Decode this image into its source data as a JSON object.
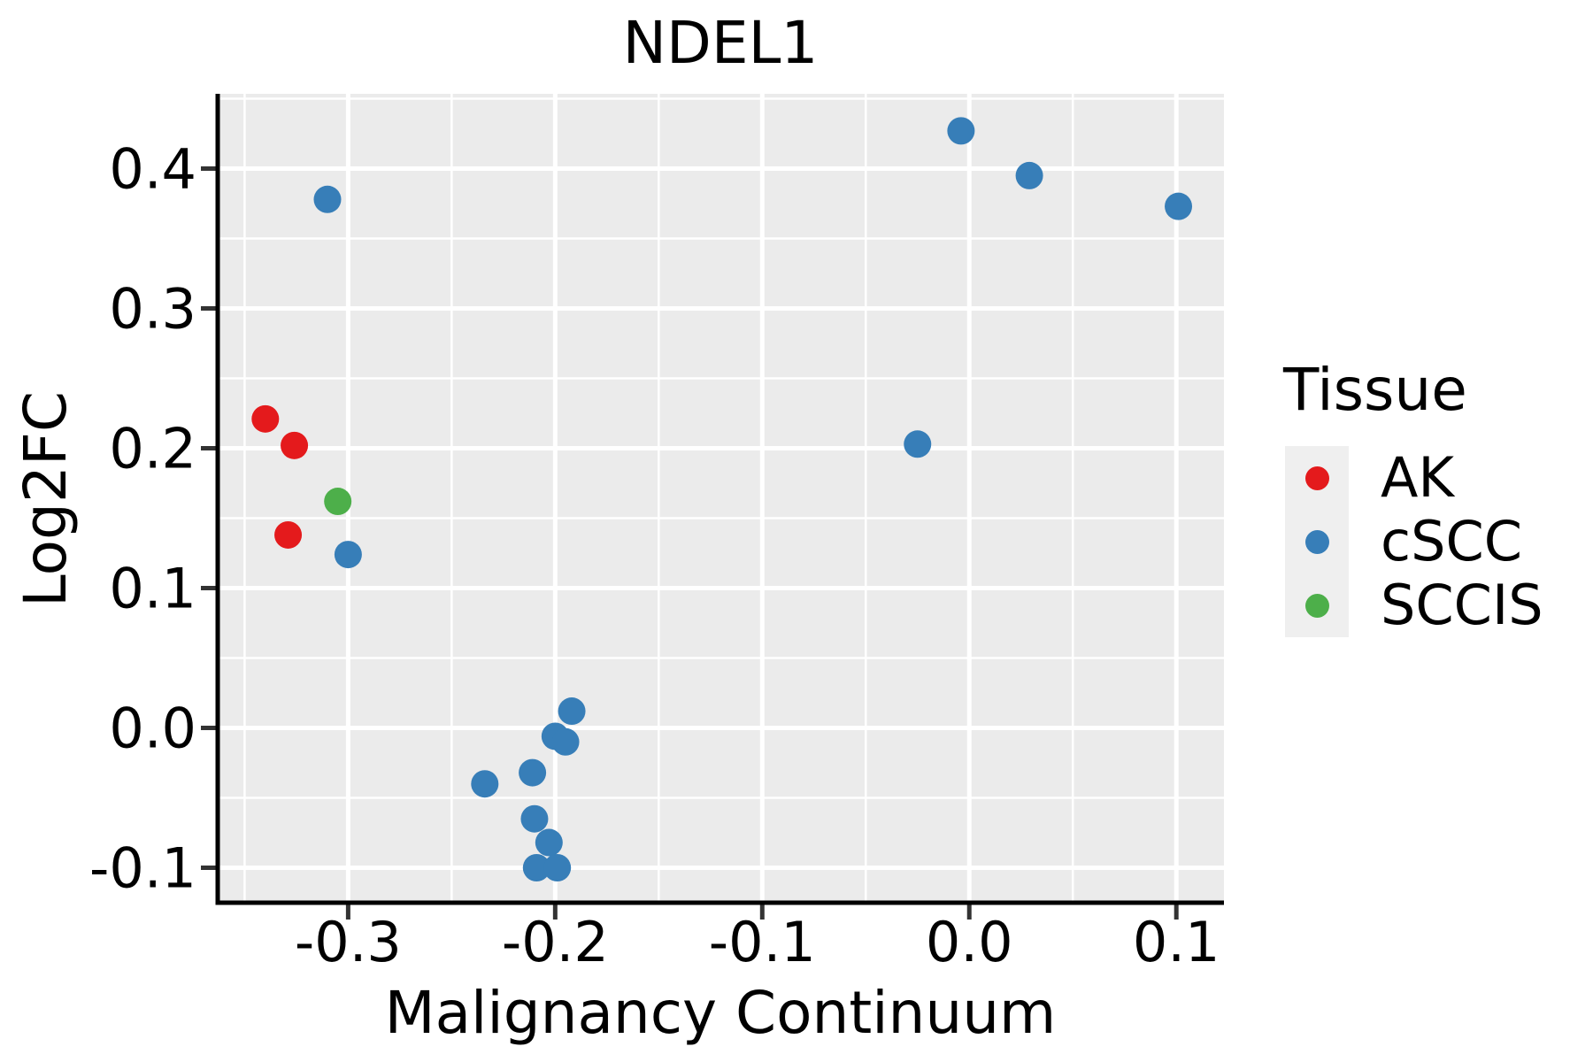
{
  "figure": {
    "background": "#FFFFFF"
  },
  "chart_data": {
    "type": "scatter",
    "title": "NDEL1",
    "xlabel": "Malignancy Continuum",
    "ylabel": "Log2FC",
    "xlim": [
      -0.363,
      0.123
    ],
    "ylim": [
      -0.125,
      0.4535
    ],
    "x_ticks": {
      "values": [
        -0.3,
        -0.2,
        -0.1,
        0.0,
        0.1
      ],
      "labels": [
        "-0.3",
        "-0.2",
        "-0.1",
        "0.0",
        "0.1"
      ]
    },
    "y_ticks": {
      "values": [
        -0.1,
        0.0,
        0.1,
        0.2,
        0.3,
        0.4
      ],
      "labels": [
        "-0.1",
        "0.0",
        "0.1",
        "0.2",
        "0.3",
        "0.4"
      ]
    },
    "grid": {
      "major": true,
      "minor": true,
      "grid_color": "#FFFFFF",
      "panel_background": "#EBEBEB"
    },
    "axis": {
      "spine_color": "#000000",
      "tick_color": "#333333",
      "text_color": "#000000"
    },
    "legend": {
      "title": "Tissue",
      "position": "right",
      "key_background": "#EFEFEF"
    },
    "point_radius_px": 15.5,
    "series": [
      {
        "name": "AK",
        "color": "#E41A1C",
        "points": [
          [
            -0.34,
            0.221
          ],
          [
            -0.326,
            0.202
          ],
          [
            -0.329,
            0.138
          ]
        ]
      },
      {
        "name": "cSCC",
        "color": "#377EB8",
        "points": [
          [
            -0.31,
            0.378
          ],
          [
            -0.004,
            0.427
          ],
          [
            0.029,
            0.395
          ],
          [
            0.101,
            0.373
          ],
          [
            -0.025,
            0.203
          ],
          [
            -0.3,
            0.124
          ],
          [
            -0.192,
            0.012
          ],
          [
            -0.2,
            -0.006
          ],
          [
            -0.195,
            -0.01
          ],
          [
            -0.211,
            -0.032
          ],
          [
            -0.234,
            -0.04
          ],
          [
            -0.21,
            -0.065
          ],
          [
            -0.203,
            -0.082
          ],
          [
            -0.209,
            -0.1
          ],
          [
            -0.199,
            -0.1
          ]
        ]
      },
      {
        "name": "SCCIS",
        "color": "#4DAF4A",
        "points": [
          [
            -0.305,
            0.162
          ]
        ]
      }
    ]
  }
}
